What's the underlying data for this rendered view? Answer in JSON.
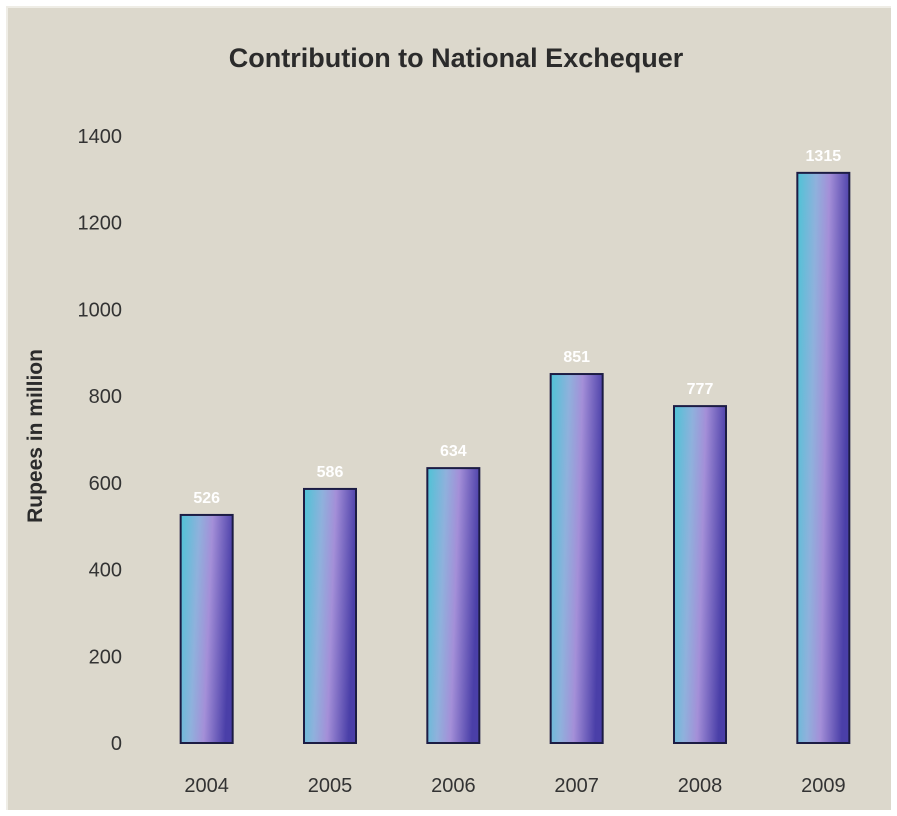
{
  "chart_data": {
    "type": "bar",
    "title": "Contribution to National Exchequer",
    "xlabel": "",
    "ylabel": "Rupees in million",
    "categories": [
      "2004",
      "2005",
      "2006",
      "2007",
      "2008",
      "2009"
    ],
    "values": [
      526,
      586,
      634,
      851,
      777,
      1315
    ],
    "ylim": [
      0,
      1400
    ],
    "yticks": [
      0,
      200,
      400,
      600,
      800,
      1000,
      1200,
      1400
    ],
    "grid": false,
    "legend": "none",
    "colors": {
      "background": "#dcd8cc",
      "bar_light": "#4ec3d6",
      "bar_mid": "#a48fd8",
      "bar_dark": "#4a3fa8",
      "bar_outline": "#1c1c44",
      "data_label": "#ffffff"
    }
  }
}
